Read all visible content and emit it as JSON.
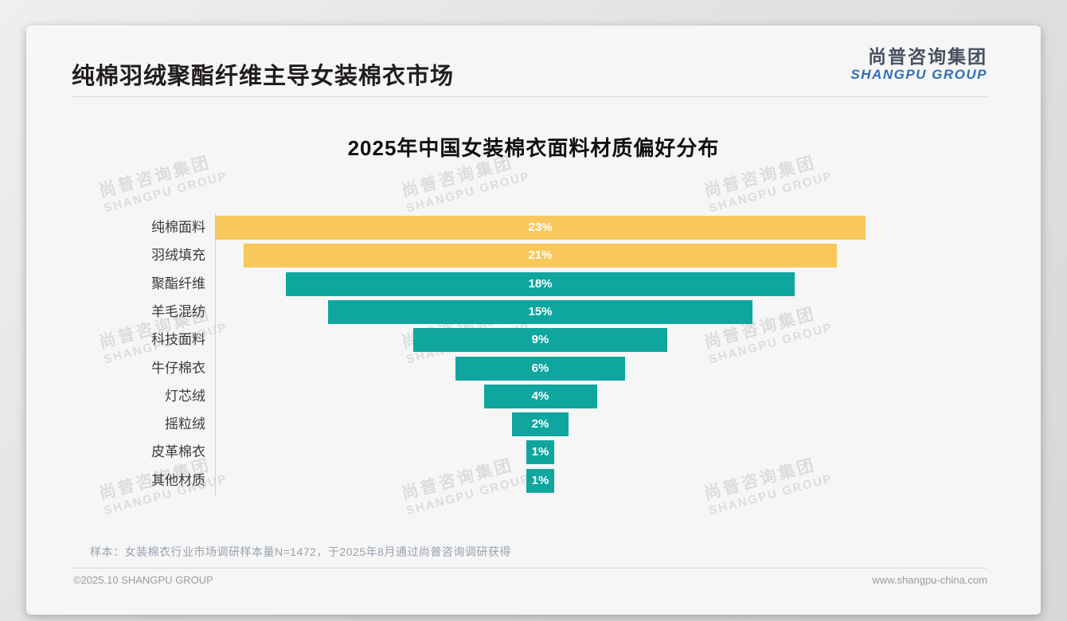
{
  "header": {
    "title": "纯棉羽绒聚酯纤维主导女装棉衣市场",
    "logo": {
      "zh": "尚普咨询集团",
      "en": "SHANGPU GROUP"
    }
  },
  "chart_data": {
    "type": "bar",
    "subtype": "centered-funnel-horizontal",
    "title": "2025年中国女装棉衣面料材质偏好分布",
    "categories": [
      "纯棉面料",
      "羽绒填充",
      "聚酯纤维",
      "羊毛混纺",
      "科技面料",
      "牛仔棉衣",
      "灯芯绒",
      "摇粒绒",
      "皮革棉衣",
      "其他材质"
    ],
    "values": [
      23,
      21,
      18,
      15,
      9,
      6,
      4,
      2,
      1,
      1
    ],
    "value_labels": [
      "23%",
      "21%",
      "18%",
      "15%",
      "9%",
      "6%",
      "4%",
      "2%",
      "1%",
      "1%"
    ],
    "unit": "%",
    "xlim": [
      0,
      23
    ],
    "bar_colors": [
      "#f9c85c",
      "#f9c85c",
      "#0fa6a0",
      "#0fa6a0",
      "#0fa6a0",
      "#0fa6a0",
      "#0fa6a0",
      "#0fa6a0",
      "#0fa6a0",
      "#0fa6a0"
    ],
    "value_label_color": "#ffffff",
    "grid": false,
    "legend": "none"
  },
  "footnote": "样本：女装棉衣行业市场调研样本量N=1472，于2025年8月通过尚普咨询调研获得",
  "footer": {
    "left": "©2025.10 SHANGPU GROUP",
    "right": "www.shangpu-china.com"
  },
  "watermark": {
    "zh": "尚普咨询集团",
    "en": "SHANGPU GROUP"
  },
  "colors": {
    "accent_yellow": "#f9c85c",
    "accent_teal": "#0fa6a0",
    "logo_blue": "#2d6fb7",
    "logo_dark": "#475060",
    "title_text": "#221d1d"
  }
}
